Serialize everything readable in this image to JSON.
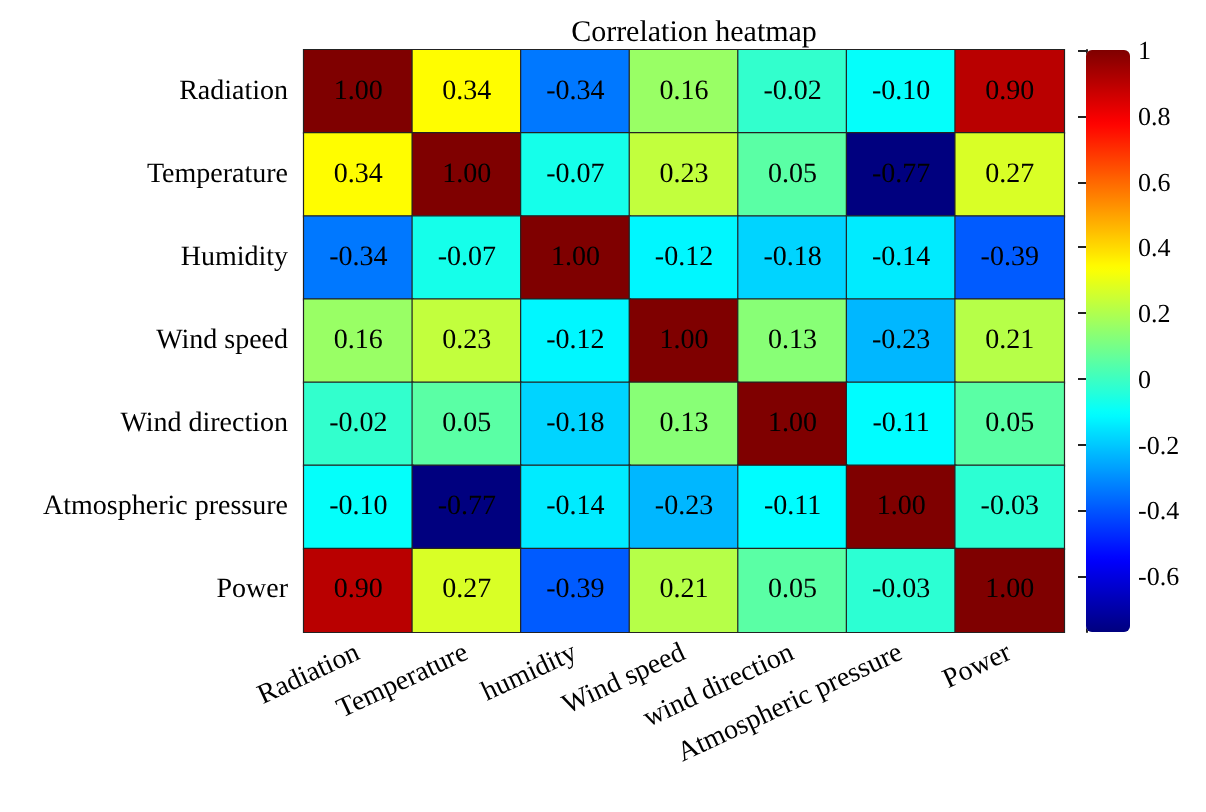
{
  "chart_data": {
    "type": "heatmap",
    "title": "Correlation heatmap",
    "categories": [
      "Radiation",
      "Temperature",
      "humidity",
      "Wind speed",
      "wind direction",
      "Atmospheric pressure",
      "Power"
    ],
    "y_categories": [
      "Radiation",
      "Temperature",
      "Humidity",
      "Wind speed",
      "Wind direction",
      "Atmospheric pressure",
      "Power"
    ],
    "cells": [
      [
        1.0,
        0.34,
        -0.34,
        0.16,
        -0.02,
        -0.1,
        0.9
      ],
      [
        0.34,
        1.0,
        -0.07,
        0.23,
        0.05,
        -0.77,
        0.27
      ],
      [
        -0.34,
        -0.07,
        1.0,
        -0.12,
        -0.18,
        -0.14,
        -0.39
      ],
      [
        0.16,
        0.23,
        -0.12,
        1.0,
        0.13,
        -0.23,
        0.21
      ],
      [
        -0.02,
        0.05,
        -0.18,
        0.13,
        1.0,
        -0.11,
        0.05
      ],
      [
        -0.1,
        -0.77,
        -0.14,
        -0.23,
        -0.11,
        1.0,
        -0.03
      ],
      [
        0.9,
        0.27,
        -0.39,
        0.21,
        0.05,
        -0.03,
        1.0
      ]
    ],
    "cell_labels": [
      [
        "1.00",
        "0.34",
        "-0.34",
        "0.16",
        "-0.02",
        "-0.10",
        "0.90"
      ],
      [
        "0.34",
        "1.00",
        "-0.07",
        "0.23",
        "0.05",
        "-0.77",
        "0.27"
      ],
      [
        "-0.34",
        "-0.07",
        "1.00",
        "-0.12",
        "-0.18",
        "-0.14",
        "-0.39"
      ],
      [
        "0.16",
        "0.23",
        "-0.12",
        "1.00",
        "0.13",
        "-0.23",
        "0.21"
      ],
      [
        "-0.02",
        "0.05",
        "-0.18",
        "0.13",
        "1.00",
        "-0.11",
        "0.05"
      ],
      [
        "-0.10",
        "-0.77",
        "-0.14",
        "-0.23",
        "-0.11",
        "1.00",
        "-0.03"
      ],
      [
        "0.90",
        "0.27",
        "-0.39",
        "0.21",
        "0.05",
        "-0.03",
        "1.00"
      ]
    ],
    "clim": [
      -0.77,
      1
    ],
    "cticks": [
      -0.6,
      -0.4,
      -0.2,
      0,
      0.2,
      0.4,
      0.6,
      0.8,
      1
    ]
  }
}
